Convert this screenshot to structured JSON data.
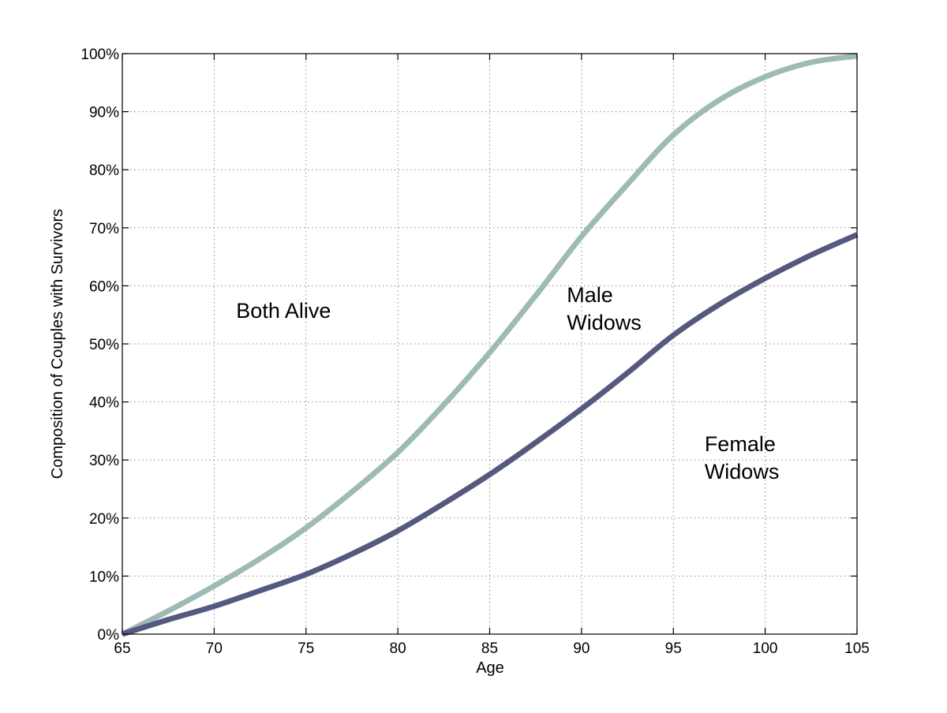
{
  "chart_data": {
    "type": "line",
    "xlabel": "Age",
    "ylabel": "Composition of Couples with Survivors",
    "xlim": [
      65,
      105
    ],
    "ylim": [
      0,
      100
    ],
    "grid": true,
    "x_ticks": [
      "65",
      "70",
      "75",
      "80",
      "85",
      "90",
      "95",
      "100",
      "105"
    ],
    "y_ticks": [
      "0%",
      "10%",
      "20%",
      "30%",
      "40%",
      "50%",
      "60%",
      "70%",
      "80%",
      "90%",
      "100%"
    ],
    "annotations": [
      {
        "text": [
          "Both Alive"
        ],
        "x": 71.2,
        "y": 54.5
      },
      {
        "text": [
          "Male",
          "Widows"
        ],
        "x": 89.2,
        "y": 57.2
      },
      {
        "text": [
          "Female",
          "Widows"
        ],
        "x": 96.7,
        "y": 31.5
      }
    ],
    "series": [
      {
        "color": "#9dbbb4",
        "x": [
          65,
          67.5,
          70,
          72.5,
          75,
          77.5,
          80,
          82.5,
          85,
          87.5,
          90,
          92.5,
          95,
          97.5,
          100,
          102.5,
          105
        ],
        "values": [
          0,
          4,
          8.3,
          13,
          18.3,
          24.5,
          31.3,
          39.5,
          48.5,
          58.3,
          68.5,
          77.5,
          86,
          92,
          96,
          98.5,
          99.6
        ]
      },
      {
        "color": "#55597f",
        "x": [
          65,
          67.5,
          70,
          72.5,
          75,
          77.5,
          80,
          82.5,
          85,
          87.5,
          90,
          92.5,
          95,
          97.5,
          100,
          102.5,
          105
        ],
        "values": [
          0,
          2.5,
          4.8,
          7.5,
          10.3,
          13.8,
          17.8,
          22.5,
          27.5,
          33,
          38.8,
          45,
          51.5,
          56.8,
          61.3,
          65.3,
          68.8
        ]
      }
    ]
  }
}
